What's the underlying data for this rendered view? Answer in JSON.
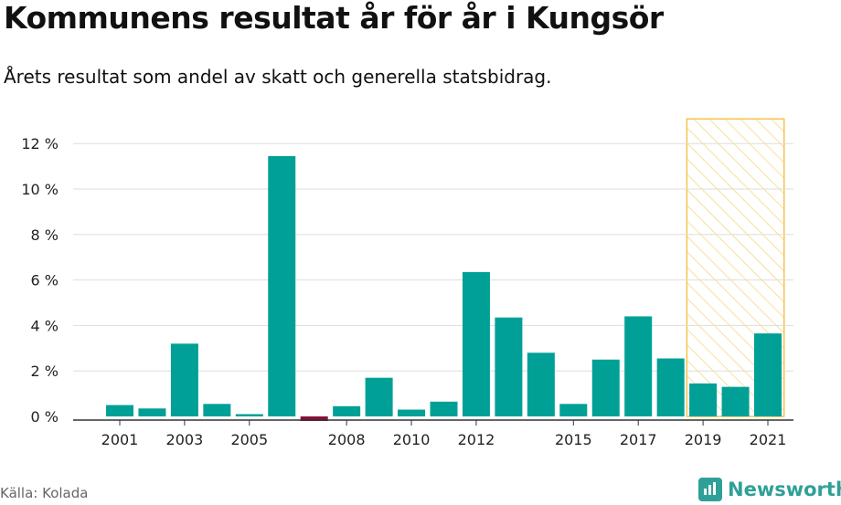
{
  "header": {
    "title": "Kommunens resultat år för år i Kungsör",
    "subtitle": "Årets resultat som andel av skatt och generella statsbidrag."
  },
  "footer": {
    "source": "Källa: Kolada",
    "brand": "Newsworthy",
    "brand_icon": "newsworthy-logo-icon"
  },
  "colors": {
    "positive": "#00a097",
    "negative": "#8b0d3a",
    "highlight": "#f5c54a"
  },
  "chart_data": {
    "type": "bar",
    "categories": [
      "2001",
      "2002",
      "2003",
      "2004",
      "2005",
      "2006",
      "2007",
      "2008",
      "2009",
      "2010",
      "2011",
      "2012",
      "2013",
      "2014",
      "2015",
      "2016",
      "2017",
      "2018",
      "2019",
      "2020",
      "2021"
    ],
    "values": [
      0.5,
      0.35,
      3.2,
      0.55,
      0.1,
      11.45,
      -0.2,
      0.45,
      1.7,
      0.3,
      0.65,
      6.35,
      4.35,
      2.8,
      0.55,
      2.5,
      4.4,
      2.55,
      1.45,
      1.3,
      3.65
    ],
    "tick_labels_x": [
      "2001",
      "2003",
      "2005",
      "2008",
      "2010",
      "2012",
      "2015",
      "2017",
      "2019",
      "2021"
    ],
    "ylim": [
      0,
      12
    ],
    "y_ticks": [
      0,
      2,
      4,
      6,
      8,
      10,
      12
    ],
    "y_tick_labels": [
      "0 %",
      "2 %",
      "4 %",
      "6 %",
      "8 %",
      "10 %",
      "12 %"
    ],
    "highlight_range": [
      "2019",
      "2021"
    ],
    "grid": true
  }
}
